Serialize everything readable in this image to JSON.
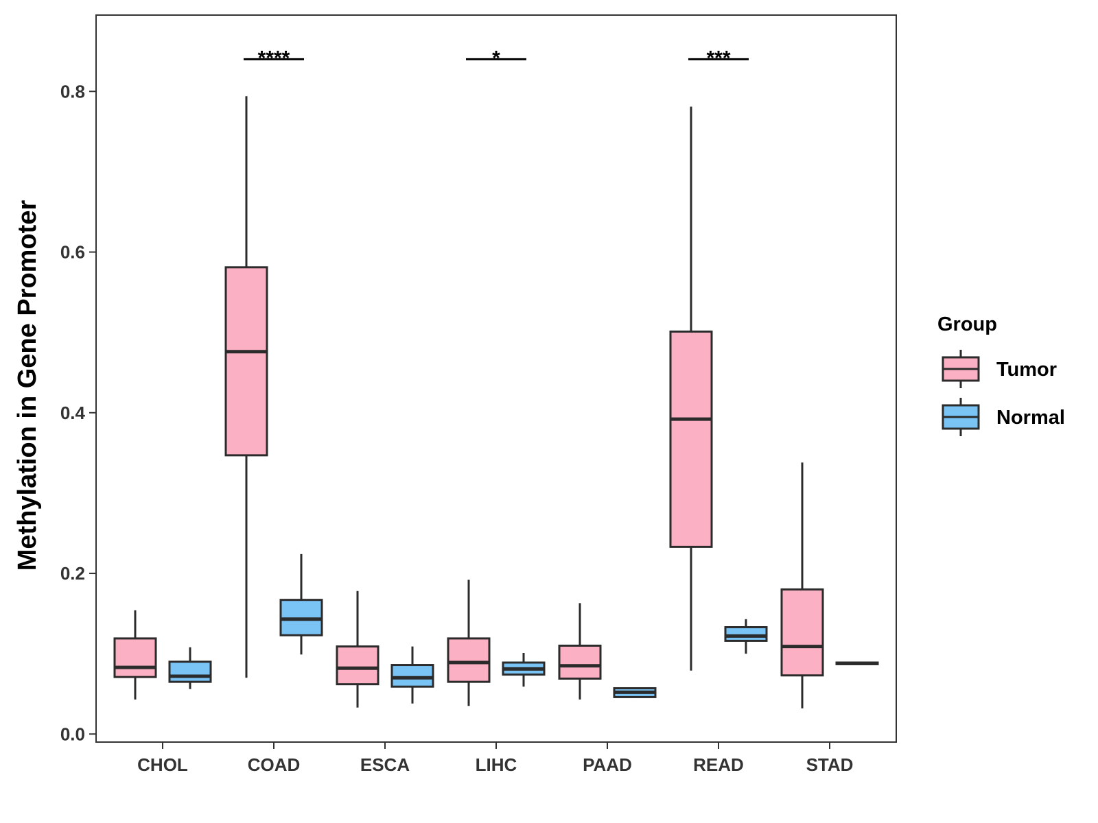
{
  "chart_data": {
    "type": "boxplot",
    "title": "",
    "xlabel": "",
    "ylabel": "Methylation in Gene Promoter",
    "ylim": [
      -0.01,
      0.895
    ],
    "yticks": [
      0.0,
      0.2,
      0.4,
      0.6,
      0.8
    ],
    "ytick_labels": [
      "0.0",
      "0.2",
      "0.4",
      "0.6",
      "0.8"
    ],
    "categories": [
      "CHOL",
      "COAD",
      "ESCA",
      "LIHC",
      "PAAD",
      "READ",
      "STAD"
    ],
    "grid": false,
    "legend": {
      "title": "Group",
      "placement": "right",
      "entries": [
        {
          "name": "Tumor",
          "color": "#FBB0C3"
        },
        {
          "name": "Normal",
          "color": "#7AC3F5"
        }
      ]
    },
    "series": [
      {
        "name": "Tumor",
        "color": "#FBB0C3",
        "boxes": [
          {
            "category": "CHOL",
            "min": 0.043,
            "q1": 0.071,
            "median": 0.083,
            "q3": 0.119,
            "max": 0.154
          },
          {
            "category": "COAD",
            "min": 0.07,
            "q1": 0.347,
            "median": 0.476,
            "q3": 0.581,
            "max": 0.794
          },
          {
            "category": "ESCA",
            "min": 0.033,
            "q1": 0.062,
            "median": 0.082,
            "q3": 0.109,
            "max": 0.178
          },
          {
            "category": "LIHC",
            "min": 0.035,
            "q1": 0.065,
            "median": 0.089,
            "q3": 0.119,
            "max": 0.192
          },
          {
            "category": "PAAD",
            "min": 0.043,
            "q1": 0.069,
            "median": 0.085,
            "q3": 0.11,
            "max": 0.163
          },
          {
            "category": "READ",
            "min": 0.079,
            "q1": 0.233,
            "median": 0.392,
            "q3": 0.501,
            "max": 0.781
          },
          {
            "category": "STAD",
            "min": 0.032,
            "q1": 0.073,
            "median": 0.109,
            "q3": 0.18,
            "max": 0.338
          }
        ]
      },
      {
        "name": "Normal",
        "color": "#7AC3F5",
        "boxes": [
          {
            "category": "CHOL",
            "min": 0.056,
            "q1": 0.065,
            "median": 0.072,
            "q3": 0.09,
            "max": 0.108
          },
          {
            "category": "COAD",
            "min": 0.099,
            "q1": 0.123,
            "median": 0.143,
            "q3": 0.167,
            "max": 0.224
          },
          {
            "category": "ESCA",
            "min": 0.038,
            "q1": 0.059,
            "median": 0.07,
            "q3": 0.086,
            "max": 0.109
          },
          {
            "category": "LIHC",
            "min": 0.059,
            "q1": 0.074,
            "median": 0.081,
            "q3": 0.089,
            "max": 0.101
          },
          {
            "category": "PAAD",
            "min": 0.045,
            "q1": 0.046,
            "median": 0.052,
            "q3": 0.057,
            "max": 0.058
          },
          {
            "category": "READ",
            "min": 0.1,
            "q1": 0.116,
            "median": 0.122,
            "q3": 0.133,
            "max": 0.143
          },
          {
            "category": "STAD",
            "min": 0.086,
            "q1": 0.087,
            "median": 0.088,
            "q3": 0.089,
            "max": 0.09
          }
        ]
      }
    ],
    "significance": [
      {
        "category": "COAD",
        "label": "****",
        "y": 0.84
      },
      {
        "category": "LIHC",
        "label": "*",
        "y": 0.84
      },
      {
        "category": "READ",
        "label": "***",
        "y": 0.84
      }
    ]
  }
}
